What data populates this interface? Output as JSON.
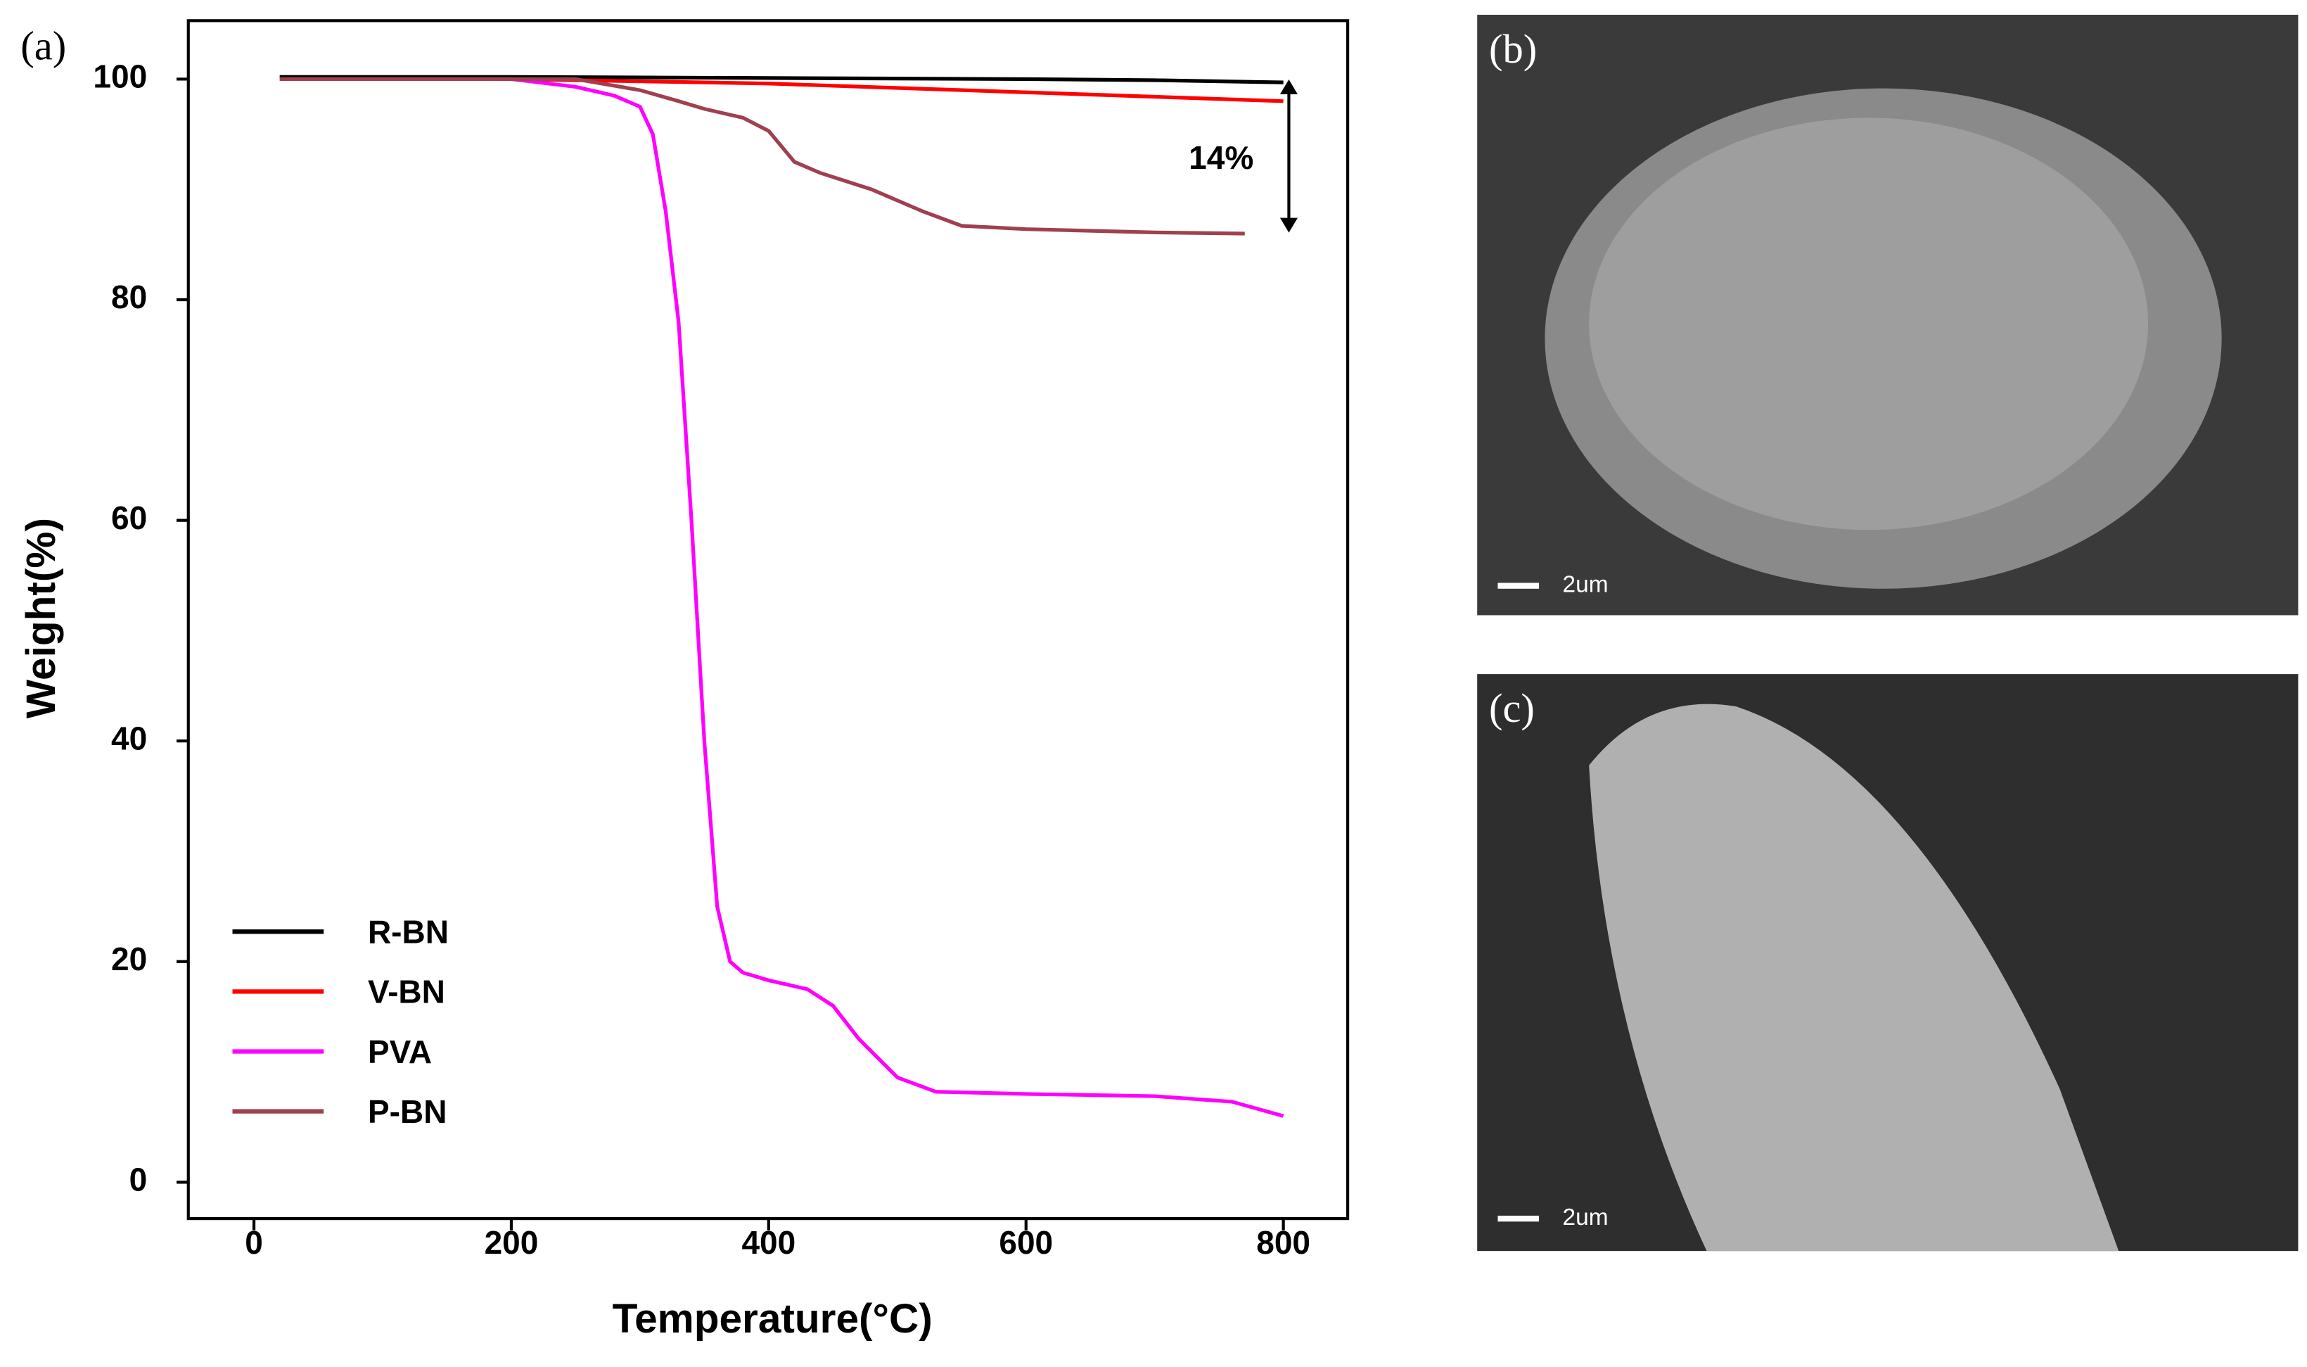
{
  "chart_data": {
    "type": "line",
    "panel_label": "(a)",
    "x_label": "Temperature(°C)",
    "y_label": "Weight(%)",
    "xlim": [
      -51,
      850
    ],
    "ylim": [
      -3.3,
      105.3
    ],
    "xticks": [
      0,
      200,
      400,
      600,
      800
    ],
    "yticks": [
      0,
      20,
      40,
      60,
      80,
      100
    ],
    "legend": "lower left",
    "annotation": "14%",
    "series": [
      {
        "name": "R-BN",
        "color": "#000000",
        "x": [
          20,
          200,
          400,
          600,
          700,
          800
        ],
        "values": [
          100.2,
          100.2,
          100.1,
          100,
          99.9,
          99.7
        ]
      },
      {
        "name": "V-BN",
        "color": "#ff0000",
        "x": [
          25,
          200,
          400,
          500,
          600,
          700,
          800
        ],
        "values": [
          100,
          100,
          99.6,
          99.2,
          98.8,
          98.4,
          98
        ]
      },
      {
        "name": "PVA",
        "color": "#ff00ff",
        "x": [
          200,
          250,
          280,
          300,
          310,
          320,
          330,
          340,
          350,
          360,
          370,
          380,
          400,
          430,
          450,
          470,
          500,
          530,
          600,
          700,
          760,
          800
        ],
        "values": [
          100,
          99.3,
          98.5,
          97.5,
          95,
          88,
          78,
          60,
          40,
          25,
          20,
          19,
          18.3,
          17.5,
          16,
          13,
          9.5,
          8.2,
          8,
          7.8,
          7.3,
          6
        ]
      },
      {
        "name": "P-BN",
        "color": "#a0404f",
        "x": [
          20,
          250,
          300,
          330,
          350,
          380,
          400,
          420,
          440,
          480,
          520,
          550,
          600,
          700,
          770
        ],
        "values": [
          100,
          100,
          99,
          98,
          97.3,
          96.5,
          95.3,
          92.5,
          91.5,
          90,
          88,
          86.7,
          86.4,
          86.1,
          86
        ]
      }
    ]
  },
  "images": [
    {
      "label": "(b)",
      "scale_bar": "2um"
    },
    {
      "label": "(c)",
      "scale_bar": "2um"
    }
  ]
}
